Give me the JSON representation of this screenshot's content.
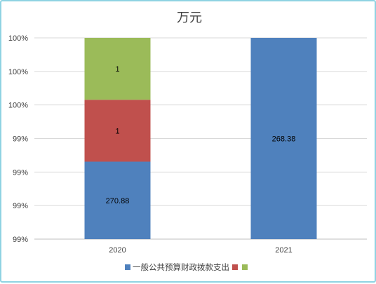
{
  "chart_data": {
    "type": "bar",
    "stacked": true,
    "percent_stacked": true,
    "title": "万元",
    "categories": [
      "2020",
      "2021"
    ],
    "series": [
      {
        "name": "一般公共预算财政拨款支出",
        "color": "#4f81bd",
        "values": [
          270.88,
          268.38
        ]
      },
      {
        "name": "",
        "color": "#c0504d",
        "values": [
          1,
          0
        ]
      },
      {
        "name": "",
        "color": "#9bbb59",
        "values": [
          1,
          0
        ]
      }
    ],
    "data_labels": [
      [
        "270.88",
        "268.38"
      ],
      [
        "1",
        ""
      ],
      [
        "1",
        ""
      ]
    ],
    "y_tick_labels": [
      "99%",
      "99%",
      "99%",
      "99%",
      "100%",
      "100%",
      "100%"
    ],
    "grid": true,
    "legend_position": "bottom"
  }
}
